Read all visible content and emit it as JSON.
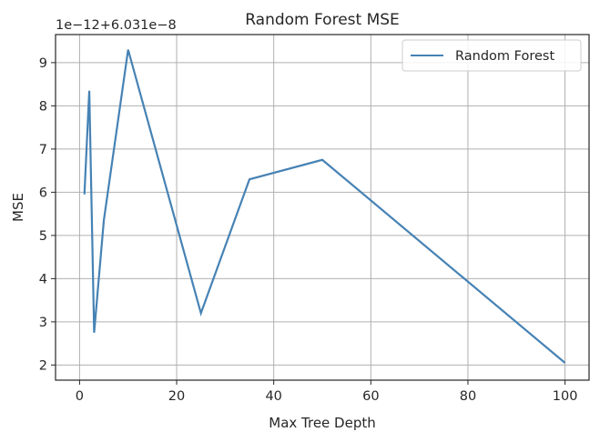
{
  "chart_data": {
    "type": "line",
    "title": "Random Forest MSE",
    "xlabel": "Max Tree Depth",
    "ylabel": "MSE",
    "axis_offset_text": "1e−12+6.031e−8",
    "xlim": [
      -4.95,
      104.95
    ],
    "ylim": [
      1.65,
      9.65
    ],
    "xticks": [
      0,
      20,
      40,
      60,
      80,
      100
    ],
    "yticks": [
      2,
      3,
      4,
      5,
      6,
      7,
      8,
      9
    ],
    "grid": true,
    "legend_position": "top-right",
    "series": [
      {
        "name": "Random Forest",
        "color": "#4682b4",
        "x": [
          1,
          2,
          3,
          5,
          10,
          25,
          35,
          50,
          100
        ],
        "y": [
          5.95,
          8.35,
          2.75,
          5.35,
          9.3,
          3.2,
          6.3,
          6.75,
          2.05
        ]
      }
    ]
  }
}
